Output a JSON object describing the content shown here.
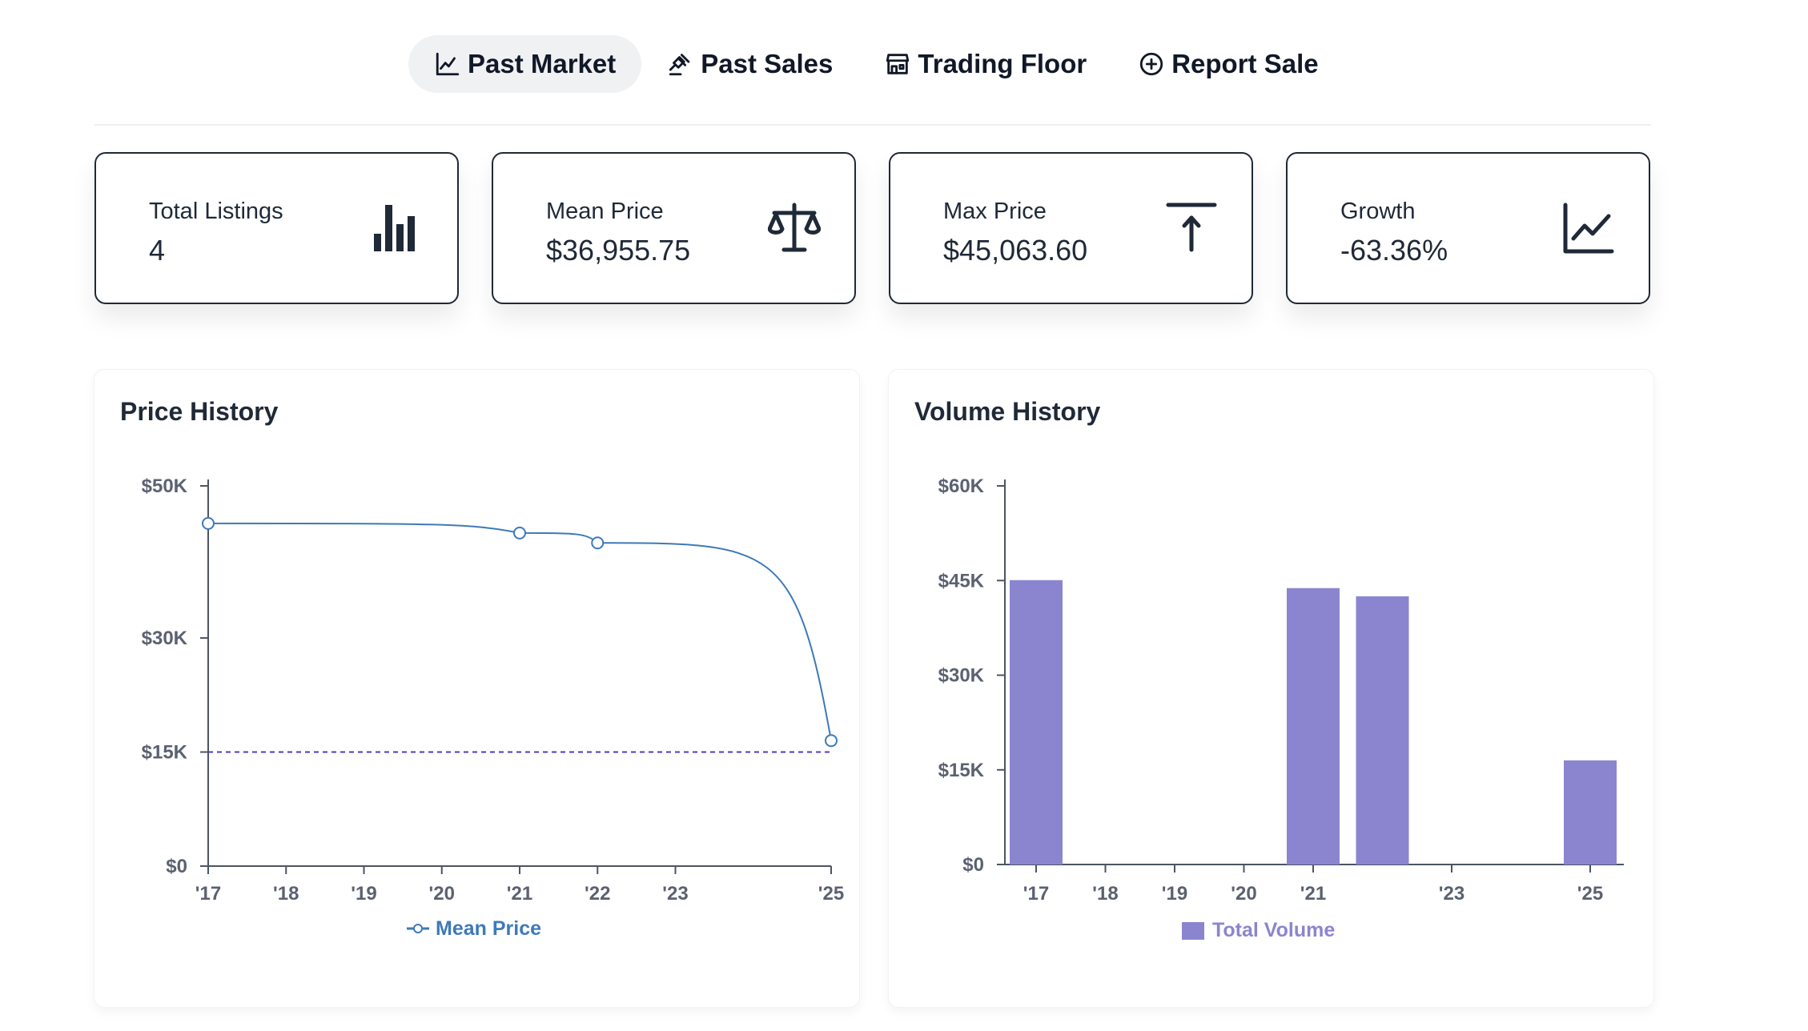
{
  "tabs": [
    {
      "label": "Past Market",
      "icon": "line-chart-icon",
      "active": true
    },
    {
      "label": "Past Sales",
      "icon": "gavel-icon",
      "active": false
    },
    {
      "label": "Trading Floor",
      "icon": "storefront-icon",
      "active": false
    },
    {
      "label": "Report Sale",
      "icon": "plus-circle-icon",
      "active": false
    }
  ],
  "stats": [
    {
      "label": "Total Listings",
      "value": "4",
      "icon": "bar-chart-icon"
    },
    {
      "label": "Mean Price",
      "value": "$36,955.75",
      "icon": "scale-icon"
    },
    {
      "label": "Max Price",
      "value": "$45,063.60",
      "icon": "arrow-up-to-line-icon"
    },
    {
      "label": "Growth",
      "value": "-63.36%",
      "icon": "trend-line-icon"
    }
  ],
  "colors": {
    "line": "#3d7ab8",
    "reference": "#4b3fb8",
    "bar": "#8b85d0",
    "axis": "#5b6170"
  },
  "chart_data": [
    {
      "type": "line",
      "title": "Price History",
      "x_ticks": [
        "'17",
        "'18",
        "'19",
        "'20",
        "'21",
        "'22",
        "'23",
        "'25"
      ],
      "y_ticks": [
        "$0",
        "$15K",
        "$30K",
        "$50K"
      ],
      "ylim": [
        0,
        50000
      ],
      "series": [
        {
          "name": "Mean Price",
          "x": [
            2017,
            2021,
            2022,
            2025
          ],
          "values": [
            45063.6,
            43800,
            42500,
            16500
          ]
        }
      ],
      "reference_line": {
        "value": 15000,
        "style": "dashed"
      },
      "legend": "bottom-center"
    },
    {
      "type": "bar",
      "title": "Volume History",
      "x_ticks": [
        "'17",
        "'18",
        "'19",
        "'20",
        "'21",
        "'23",
        "'25"
      ],
      "y_ticks": [
        "$0",
        "$15K",
        "$30K",
        "$45K",
        "$60K"
      ],
      "ylim": [
        0,
        60000
      ],
      "series": [
        {
          "name": "Total Volume",
          "x": [
            2017,
            2021,
            2022,
            2025
          ],
          "values": [
            45063.6,
            43800,
            42500,
            16500
          ]
        }
      ],
      "legend": "bottom-center"
    }
  ]
}
